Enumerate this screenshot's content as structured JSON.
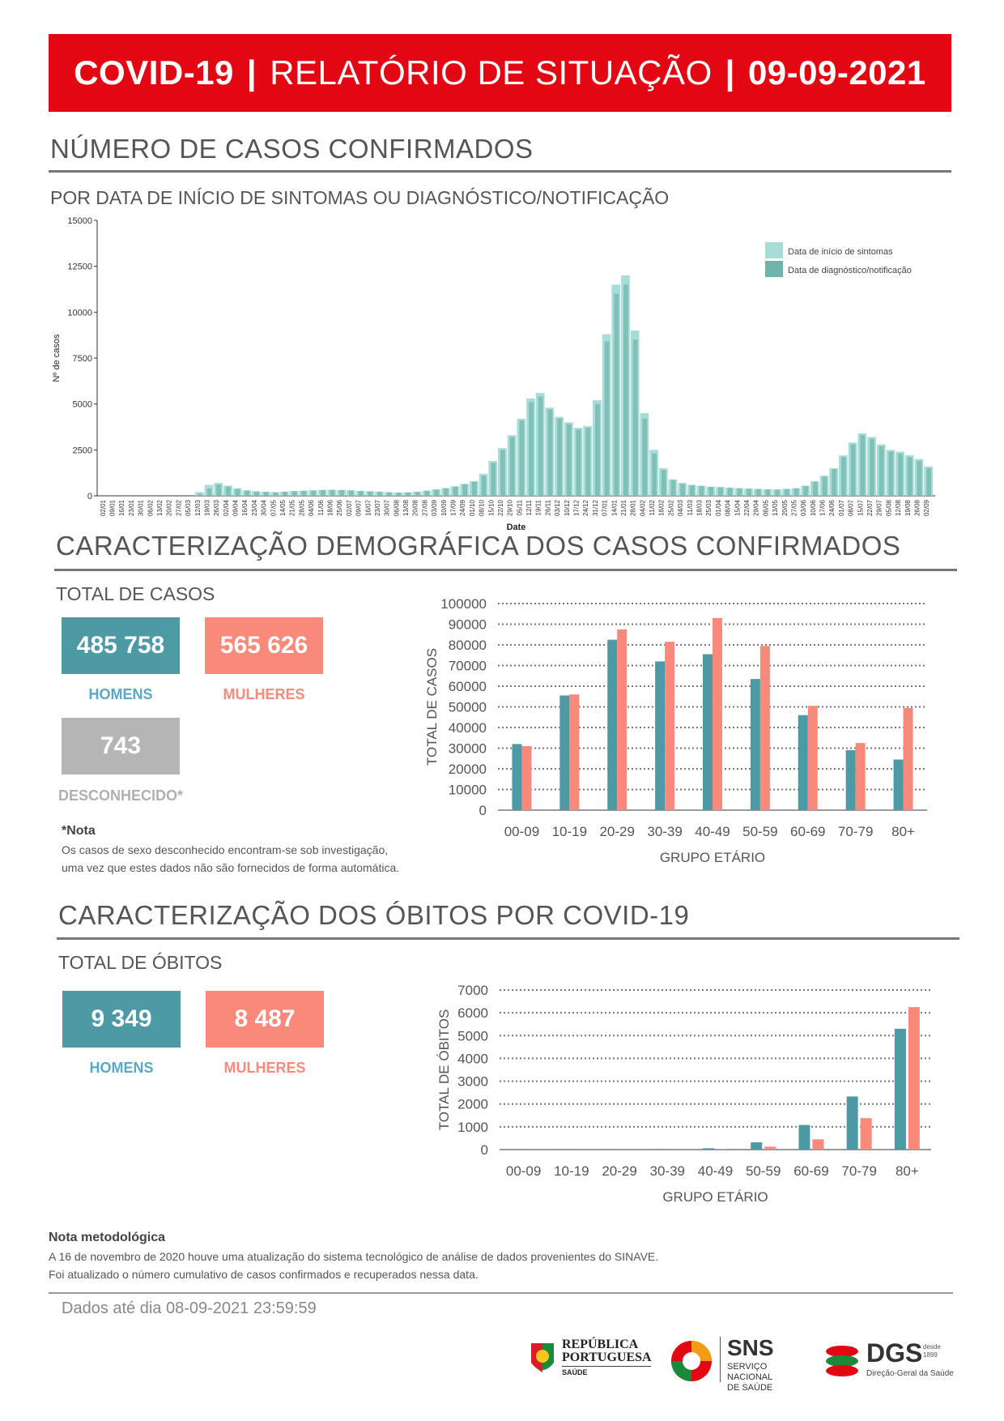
{
  "header": {
    "title_bold": "COVID-19",
    "sep1": "|",
    "title_main": "RELATÓRIO DE SITUAÇÃO",
    "sep2": "|",
    "date": "09-09-2021"
  },
  "sections": {
    "cases_title": "NÚMERO DE CASOS CONFIRMADOS",
    "cases_subtitle": "POR DATA DE INÍCIO DE SINTOMAS OU DIAGNÓSTICO/NOTIFICAÇÃO",
    "demo_title": "CARACTERIZAÇÃO DEMOGRÁFICA DOS CASOS CONFIRMADOS",
    "demo_subtitle": "TOTAL DE CASOS",
    "deaths_title": "CARACTERIZAÇÃO DOS ÓBITOS POR COVID-19",
    "deaths_subtitle": "TOTAL DE ÓBITOS"
  },
  "cases_totals": {
    "men_value": "485 758",
    "men_label": "HOMENS",
    "women_value": "565 626",
    "women_label": "MULHERES",
    "unknown_value": "743",
    "unknown_label": "DESCONHECIDO*"
  },
  "note": {
    "title": "*Nota",
    "line1": "Os casos de sexo desconhecido encontram-se sob investigação,",
    "line2": "uma vez que estes dados não são fornecidos de forma automática."
  },
  "deaths_totals": {
    "men_value": "9 349",
    "men_label": "HOMENS",
    "women_value": "8 487",
    "women_label": "MULHERES"
  },
  "method_note": {
    "title": "Nota metodológica",
    "line1": "A 16 de novembro de 2020 houve uma atualização do sistema tecnológico de análise de dados provenientes do SINAVE.",
    "line2": "Foi atualizado o número cumulativo de casos confirmados e recuperados nessa data."
  },
  "footer": {
    "data_until": "Dados até dia 08-09-2021 23:59:59"
  },
  "logos": {
    "republica_line1": "REPÚBLICA",
    "republica_line2": "PORTUGUESA",
    "republica_line3": "SAÚDE",
    "sns_title": "SNS",
    "sns_line1": "SERVIÇO NACIONAL",
    "sns_line2": "DE SAÚDE",
    "dgs_title": "DGS",
    "dgs_since": "desde 1899",
    "dgs_line": "Direção-Geral da Saúde"
  },
  "colors": {
    "red": "#e30613",
    "teal": "#4e9aa4",
    "salmon": "#f9897b",
    "light_teal": "#a8dcd6",
    "dark_teal": "#6fb3ab"
  },
  "chart_data": [
    {
      "type": "bar",
      "title": "",
      "xlabel": "Date",
      "ylabel": "Nº de casos",
      "ylim": [
        0,
        15000
      ],
      "yticks": [
        "0",
        "2500",
        "5000",
        "7500",
        "10000",
        "12500",
        "15000"
      ],
      "legend_position": "top-right",
      "x": [
        "02/01",
        "09/01",
        "16/01",
        "23/01",
        "30/01",
        "06/02",
        "13/02",
        "20/02",
        "27/02",
        "05/03",
        "12/03",
        "19/03",
        "26/03",
        "02/04",
        "09/04",
        "16/04",
        "23/04",
        "30/04",
        "07/05",
        "14/05",
        "21/05",
        "28/05",
        "04/06",
        "11/06",
        "18/06",
        "25/06",
        "02/07",
        "09/07",
        "16/07",
        "23/07",
        "30/07",
        "06/08",
        "13/08",
        "20/08",
        "27/08",
        "03/09",
        "10/09",
        "17/09",
        "24/09",
        "01/10",
        "08/10",
        "15/10",
        "22/10",
        "29/10",
        "05/11",
        "12/11",
        "19/11",
        "26/11",
        "03/12",
        "10/12",
        "17/12",
        "24/12",
        "31/12",
        "07/01",
        "14/01",
        "21/01",
        "28/01",
        "04/02",
        "11/02",
        "18/02",
        "25/02",
        "04/03",
        "11/03",
        "18/03",
        "25/03",
        "01/04",
        "08/04",
        "15/04",
        "22/04",
        "29/04",
        "06/05",
        "13/05",
        "20/05",
        "27/05",
        "03/06",
        "10/06",
        "17/06",
        "24/06",
        "01/07",
        "08/07",
        "15/07",
        "22/07",
        "29/07",
        "05/08",
        "12/08",
        "19/08",
        "26/08",
        "02/09"
      ],
      "series": [
        {
          "name": "Data de início de sintomas",
          "values": [
            0,
            0,
            0,
            0,
            0,
            0,
            0,
            0,
            0,
            0,
            200,
            600,
            700,
            550,
            400,
            300,
            250,
            220,
            200,
            230,
            260,
            280,
            300,
            320,
            330,
            320,
            300,
            270,
            250,
            230,
            200,
            180,
            190,
            220,
            280,
            350,
            420,
            520,
            650,
            800,
            1200,
            1900,
            2600,
            3300,
            4200,
            5300,
            5600,
            4800,
            4300,
            4000,
            3700,
            3800,
            5200,
            8800,
            11500,
            12000,
            9000,
            4500,
            2500,
            1500,
            900,
            700,
            600,
            550,
            500,
            480,
            450,
            420,
            400,
            380,
            360,
            350,
            380,
            420,
            550,
            800,
            1100,
            1500,
            2200,
            2900,
            3400,
            3200,
            2800,
            2500,
            2400,
            2200,
            2000,
            1600
          ]
        },
        {
          "name": "Data de diagnóstico/notificação",
          "values": [
            0,
            0,
            0,
            0,
            0,
            0,
            0,
            0,
            0,
            0,
            100,
            400,
            600,
            500,
            380,
            280,
            240,
            210,
            190,
            220,
            250,
            270,
            290,
            310,
            320,
            310,
            290,
            260,
            240,
            220,
            190,
            170,
            180,
            210,
            270,
            340,
            410,
            500,
            620,
            760,
            1100,
            1800,
            2500,
            3200,
            4100,
            5100,
            5400,
            4700,
            4200,
            3900,
            3600,
            3700,
            5000,
            8400,
            11000,
            11500,
            8500,
            4200,
            2300,
            1400,
            850,
            650,
            570,
            520,
            480,
            460,
            430,
            400,
            380,
            360,
            340,
            330,
            360,
            400,
            520,
            760,
            1050,
            1450,
            2100,
            2800,
            3300,
            3100,
            2700,
            2400,
            2300,
            2100,
            1900,
            1500
          ]
        }
      ]
    },
    {
      "type": "bar",
      "title": "",
      "xlabel": "GRUPO ETÁRIO",
      "ylabel": "TOTAL DE CASOS",
      "ylim": [
        0,
        100000
      ],
      "yticks": [
        "0",
        "10000",
        "20000",
        "30000",
        "40000",
        "50000",
        "60000",
        "70000",
        "80000",
        "90000",
        "100000"
      ],
      "categories": [
        "00-09",
        "10-19",
        "20-29",
        "30-39",
        "40-49",
        "50-59",
        "60-69",
        "70-79",
        "80+"
      ],
      "series": [
        {
          "values": [
            32000,
            55500,
            82500,
            72000,
            75500,
            63500,
            46000,
            29000,
            24500
          ]
        },
        {
          "values": [
            31000,
            56000,
            87500,
            81500,
            93000,
            79500,
            50500,
            32500,
            49500
          ]
        }
      ]
    },
    {
      "type": "bar",
      "title": "",
      "xlabel": "GRUPO ETÁRIO",
      "ylabel": "TOTAL DE ÓBITOS",
      "ylim": [
        0,
        7000
      ],
      "yticks": [
        "0",
        "1000",
        "2000",
        "3000",
        "4000",
        "5000",
        "6000",
        "7000"
      ],
      "categories": [
        "00-09",
        "10-19",
        "20-29",
        "30-39",
        "40-49",
        "50-59",
        "60-69",
        "70-79",
        "80+"
      ],
      "series": [
        {
          "values": [
            2,
            1,
            5,
            12,
            60,
            320,
            1080,
            2330,
            5300
          ]
        },
        {
          "values": [
            1,
            1,
            3,
            8,
            35,
            130,
            450,
            1380,
            6250
          ]
        }
      ]
    }
  ]
}
